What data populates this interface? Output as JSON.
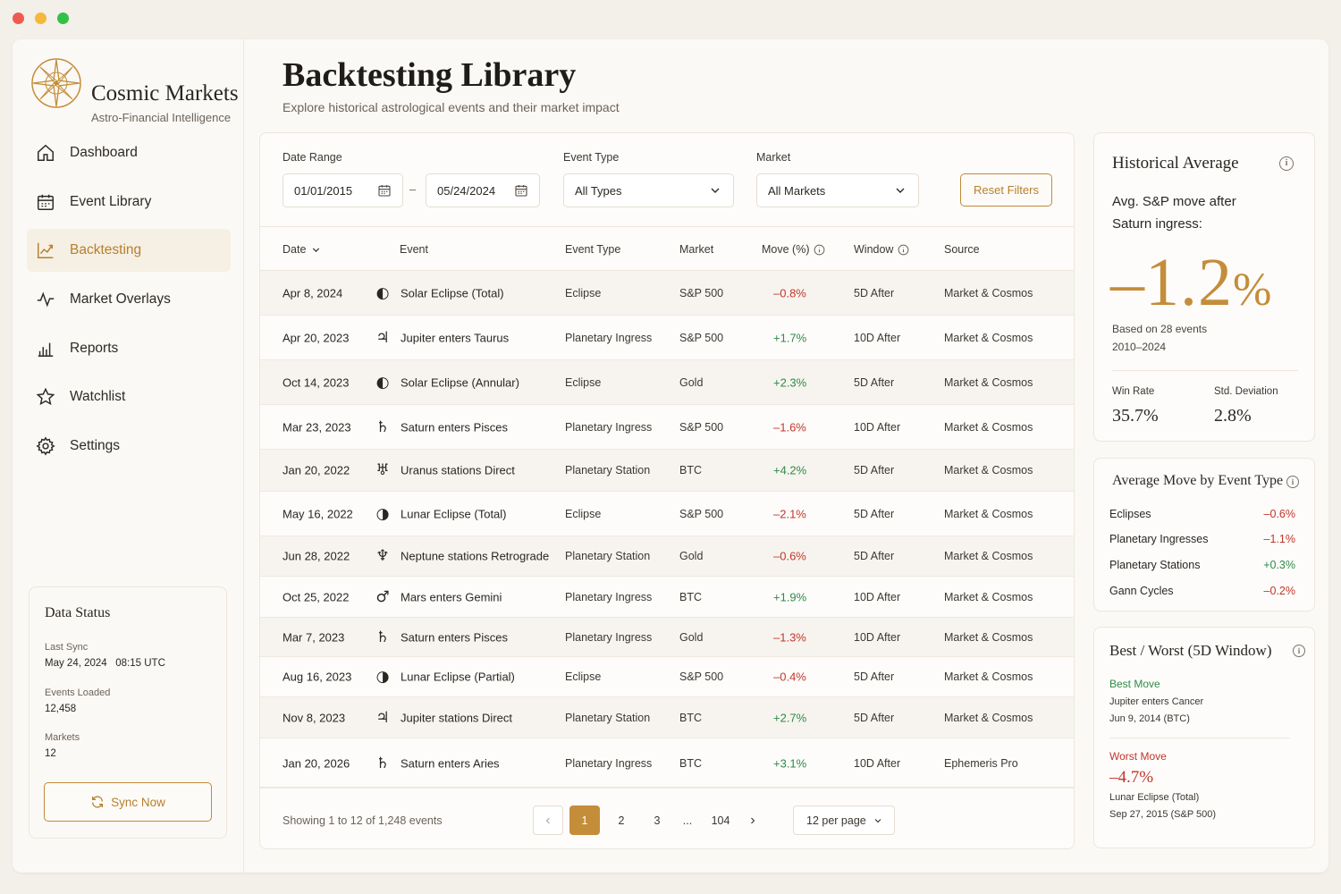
{
  "app": {
    "brand_name": "Cosmic Markets",
    "brand_tagline": "Astro-Financial Intelligence"
  },
  "sidebar": {
    "items": [
      {
        "label": "Dashboard",
        "icon": "home-icon"
      },
      {
        "label": "Event Library",
        "icon": "calendar-icon"
      },
      {
        "label": "Backtesting",
        "icon": "line-chart-icon",
        "active": true
      },
      {
        "label": "Market Overlays",
        "icon": "pulse-icon"
      },
      {
        "label": "Reports",
        "icon": "bar-chart-icon"
      },
      {
        "label": "Watchlist",
        "icon": "star-icon"
      },
      {
        "label": "Settings",
        "icon": "gear-icon"
      }
    ],
    "status": {
      "title": "Data Status",
      "last_sync_label": "Last Sync",
      "last_sync_value": "May 24, 2024   08:15 UTC",
      "events_label": "Events Loaded",
      "events_value": "12,458",
      "markets_label": "Markets",
      "markets_value": "12",
      "sync_button": "Sync Now"
    }
  },
  "header": {
    "title": "Backtesting Library",
    "subtitle": "Explore historical astrological events and their market impact"
  },
  "filters": {
    "date_range_label": "Date Range",
    "date_from": "01/01/2015",
    "date_sep": "–",
    "date_to": "05/24/2024",
    "event_type_label": "Event Type",
    "event_type_value": "All Types",
    "market_label": "Market",
    "market_value": "All Markets",
    "reset_button": "Reset Filters"
  },
  "table": {
    "headers": {
      "date": "Date",
      "event": "Event",
      "event_type": "Event Type",
      "market": "Market",
      "move": "Move (%)",
      "window": "Window",
      "source": "Source"
    },
    "rows": [
      {
        "date": "Apr 8, 2024",
        "glyph": "◐",
        "icon": "solar-eclipse-icon",
        "event": "Solar Eclipse (Total)",
        "type": "Eclipse",
        "market": "S&P 500",
        "move": "–0.8%",
        "dir": "neg",
        "window": "5D After",
        "source": "Market & Cosmos"
      },
      {
        "date": "Apr 20, 2023",
        "glyph": "♃",
        "icon": "jupiter-icon",
        "event": "Jupiter enters Taurus",
        "type": "Planetary Ingress",
        "market": "S&P 500",
        "move": "+1.7%",
        "dir": "pos",
        "window": "10D After",
        "source": "Market & Cosmos"
      },
      {
        "date": "Oct 14, 2023",
        "glyph": "◐",
        "icon": "solar-eclipse-icon",
        "event": "Solar Eclipse (Annular)",
        "type": "Eclipse",
        "market": "Gold",
        "move": "+2.3%",
        "dir": "pos",
        "window": "5D After",
        "source": "Market & Cosmos"
      },
      {
        "date": "Mar 23, 2023",
        "glyph": "♄",
        "icon": "saturn-icon",
        "event": "Saturn enters Pisces",
        "type": "Planetary Ingress",
        "market": "S&P 500",
        "move": "–1.6%",
        "dir": "neg",
        "window": "10D After",
        "source": "Market & Cosmos"
      },
      {
        "date": "Jan 20, 2022",
        "glyph": "♅",
        "icon": "uranus-icon",
        "event": "Uranus stations Direct",
        "type": "Planetary Station",
        "market": "BTC",
        "move": "+4.2%",
        "dir": "pos",
        "window": "5D After",
        "source": "Market & Cosmos"
      },
      {
        "date": "May 16, 2022",
        "glyph": "◑",
        "icon": "lunar-eclipse-icon",
        "event": "Lunar Eclipse (Total)",
        "type": "Eclipse",
        "market": "S&P 500",
        "move": "–2.1%",
        "dir": "neg",
        "window": "5D After",
        "source": "Market & Cosmos"
      },
      {
        "date": "Jun 28, 2022",
        "glyph": "♆",
        "icon": "neptune-icon",
        "event": "Neptune stations Retrograde",
        "type": "Planetary Station",
        "market": "Gold",
        "move": "–0.6%",
        "dir": "neg",
        "window": "5D After",
        "source": "Market & Cosmos"
      },
      {
        "date": "Oct 25, 2022",
        "glyph": "♂",
        "icon": "mars-icon",
        "event": "Mars enters Gemini",
        "type": "Planetary Ingress",
        "market": "BTC",
        "move": "+1.9%",
        "dir": "pos",
        "window": "10D After",
        "source": "Market & Cosmos"
      },
      {
        "date": "Mar 7, 2023",
        "glyph": "♄",
        "icon": "saturn-icon",
        "event": "Saturn enters Pisces",
        "type": "Planetary Ingress",
        "market": "Gold",
        "move": "–1.3%",
        "dir": "neg",
        "window": "10D After",
        "source": "Market & Cosmos"
      },
      {
        "date": "Aug 16, 2023",
        "glyph": "◑",
        "icon": "lunar-eclipse-icon",
        "event": "Lunar Eclipse (Partial)",
        "type": "Eclipse",
        "market": "S&P 500",
        "move": "–0.4%",
        "dir": "neg",
        "window": "5D After",
        "source": "Market & Cosmos"
      },
      {
        "date": "Nov 8, 2023",
        "glyph": "♃",
        "icon": "jupiter-icon",
        "event": "Jupiter stations Direct",
        "type": "Planetary Station",
        "market": "BTC",
        "move": "+2.7%",
        "dir": "pos",
        "window": "5D After",
        "source": "Market & Cosmos"
      },
      {
        "date": "Jan 20, 2026",
        "glyph": "♄",
        "icon": "saturn-icon",
        "event": "Saturn enters Aries",
        "type": "Planetary Ingress",
        "market": "BTC",
        "move": "+3.1%",
        "dir": "pos",
        "window": "10D After",
        "source": "Ephemeris Pro"
      }
    ],
    "showing": "Showing 1 to 12 of 1,248 events",
    "pages": [
      "1",
      "2",
      "3",
      "...",
      "104"
    ],
    "current_page": "1",
    "per_page": "12 per page"
  },
  "historical": {
    "title": "Historical Average",
    "desc": "Avg. S&P move after Saturn ingress:",
    "value_number": "–1.2",
    "value_unit": "%",
    "based_on": "Based on 28 events",
    "range": "2010–2024",
    "win_rate_label": "Win Rate",
    "win_rate_value": "35.7%",
    "std_label": "Std. Deviation",
    "std_value": "2.8%"
  },
  "avg_by_type": {
    "title": "Average Move by Event Type",
    "rows": [
      {
        "label": "Eclipses",
        "value": "–0.6%",
        "dir": "neg"
      },
      {
        "label": "Planetary Ingresses",
        "value": "–1.1%",
        "dir": "neg"
      },
      {
        "label": "Planetary Stations",
        "value": "+0.3%",
        "dir": "pos"
      },
      {
        "label": "Gann Cycles",
        "value": "–0.2%",
        "dir": "neg"
      }
    ]
  },
  "best_worst": {
    "title": "Best / Worst (5D Window)",
    "best_label": "Best Move",
    "best_event": "Jupiter enters Cancer",
    "best_date": "Jun 9, 2014 (BTC)",
    "worst_label": "Worst Move",
    "worst_value": "–4.7%",
    "worst_event": "Lunar Eclipse (Total)",
    "worst_date": "Sep 27, 2015 (S&P 500)"
  },
  "colors": {
    "accent": "#c48d3a",
    "negative": "#c2362b",
    "positive": "#2f8a48",
    "background": "#fbf9f5"
  }
}
